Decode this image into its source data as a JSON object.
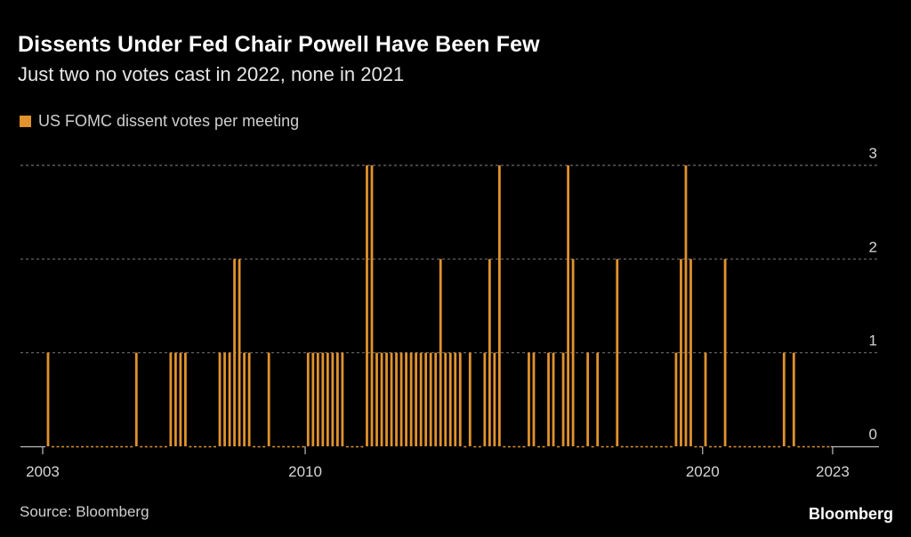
{
  "header": {
    "title": "Dissents Under Fed Chair Powell Have Been Few",
    "subtitle": "Just two no votes cast in 2022, none in 2021"
  },
  "legend": {
    "label": "US FOMC dissent votes per meeting",
    "color": "#E0922C"
  },
  "footer": {
    "source": "Source: Bloomberg",
    "brand": "Bloomberg"
  },
  "colors": {
    "background": "#000000",
    "bar": "#E0922C",
    "grid": "#6b6b6b",
    "axis": "#bdbdbd"
  },
  "chart_data": {
    "type": "bar",
    "title": "Dissents Under Fed Chair Powell Have Been Few",
    "subtitle": "Just two no votes cast in 2022, none in 2021",
    "xlabel": "",
    "ylabel": "",
    "x_unit": "meeting index (sequential FOMC meetings)",
    "meeting_count": 160,
    "nonzero_meetings": [
      {
        "i": 0,
        "v": 1
      },
      {
        "i": 18,
        "v": 1
      },
      {
        "i": 25,
        "v": 1
      },
      {
        "i": 26,
        "v": 1
      },
      {
        "i": 27,
        "v": 1
      },
      {
        "i": 28,
        "v": 1
      },
      {
        "i": 35,
        "v": 1
      },
      {
        "i": 36,
        "v": 1
      },
      {
        "i": 37,
        "v": 1
      },
      {
        "i": 38,
        "v": 2
      },
      {
        "i": 39,
        "v": 2
      },
      {
        "i": 40,
        "v": 1
      },
      {
        "i": 41,
        "v": 1
      },
      {
        "i": 45,
        "v": 1
      },
      {
        "i": 53,
        "v": 1
      },
      {
        "i": 54,
        "v": 1
      },
      {
        "i": 55,
        "v": 1
      },
      {
        "i": 56,
        "v": 1
      },
      {
        "i": 57,
        "v": 1
      },
      {
        "i": 58,
        "v": 1
      },
      {
        "i": 59,
        "v": 1
      },
      {
        "i": 60,
        "v": 1
      },
      {
        "i": 65,
        "v": 3
      },
      {
        "i": 66,
        "v": 3
      },
      {
        "i": 67,
        "v": 1
      },
      {
        "i": 68,
        "v": 1
      },
      {
        "i": 69,
        "v": 1
      },
      {
        "i": 70,
        "v": 1
      },
      {
        "i": 71,
        "v": 1
      },
      {
        "i": 72,
        "v": 1
      },
      {
        "i": 73,
        "v": 1
      },
      {
        "i": 74,
        "v": 1
      },
      {
        "i": 75,
        "v": 1
      },
      {
        "i": 76,
        "v": 1
      },
      {
        "i": 77,
        "v": 1
      },
      {
        "i": 78,
        "v": 1
      },
      {
        "i": 79,
        "v": 1
      },
      {
        "i": 80,
        "v": 2
      },
      {
        "i": 81,
        "v": 1
      },
      {
        "i": 82,
        "v": 1
      },
      {
        "i": 83,
        "v": 1
      },
      {
        "i": 84,
        "v": 1
      },
      {
        "i": 86,
        "v": 1
      },
      {
        "i": 89,
        "v": 1
      },
      {
        "i": 90,
        "v": 2
      },
      {
        "i": 91,
        "v": 1
      },
      {
        "i": 92,
        "v": 3
      },
      {
        "i": 98,
        "v": 1
      },
      {
        "i": 99,
        "v": 1
      },
      {
        "i": 102,
        "v": 1
      },
      {
        "i": 103,
        "v": 1
      },
      {
        "i": 105,
        "v": 1
      },
      {
        "i": 106,
        "v": 3
      },
      {
        "i": 107,
        "v": 2
      },
      {
        "i": 110,
        "v": 1
      },
      {
        "i": 112,
        "v": 1
      },
      {
        "i": 116,
        "v": 2
      },
      {
        "i": 128,
        "v": 1
      },
      {
        "i": 129,
        "v": 2
      },
      {
        "i": 130,
        "v": 3
      },
      {
        "i": 131,
        "v": 2
      },
      {
        "i": 134,
        "v": 1
      },
      {
        "i": 138,
        "v": 2
      },
      {
        "i": 150,
        "v": 1
      },
      {
        "i": 152,
        "v": 1
      }
    ],
    "x_ticks": [
      {
        "label": "2003",
        "at": -1
      },
      {
        "label": "2010",
        "at": 52.5
      },
      {
        "label": "2020",
        "at": 133.5
      },
      {
        "label": "2023",
        "at": 160
      }
    ],
    "y_ticks": [
      0,
      1,
      2,
      3
    ],
    "ylim": [
      0,
      3
    ],
    "grid": true,
    "legend_position": "top-left",
    "series": [
      {
        "name": "US FOMC dissent votes per meeting",
        "color": "#E0922C"
      }
    ]
  }
}
